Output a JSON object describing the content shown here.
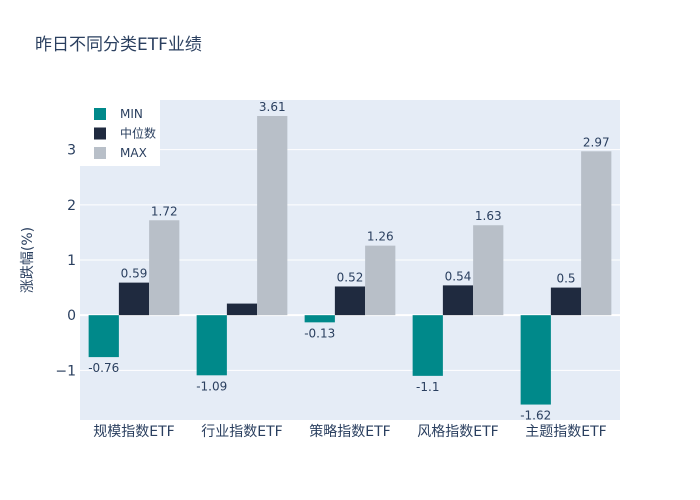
{
  "chart_data": {
    "type": "bar",
    "title": "昨日不同分类ETF业绩",
    "xlabel": "",
    "ylabel": "涨跌幅(%)",
    "categories": [
      "规模指数ETF",
      "行业指数ETF",
      "策略指数ETF",
      "风格指数ETF",
      "主题指数ETF"
    ],
    "series": [
      {
        "name": "MIN",
        "values": [
          -0.76,
          -1.09,
          -0.13,
          -1.1,
          -1.62
        ],
        "labels": [
          "-0.76",
          "-1.09",
          "-0.13",
          "-1.1",
          "-1.62"
        ],
        "color": "#00898a"
      },
      {
        "name": "中位数",
        "values": [
          0.59,
          0.21,
          0.52,
          0.54,
          0.5
        ],
        "labels": [
          "0.59",
          "",
          "0.52",
          "0.54",
          "0.5"
        ],
        "color": "#1f2a3f"
      },
      {
        "name": "MAX",
        "values": [
          1.72,
          3.61,
          1.26,
          1.63,
          2.97
        ],
        "labels": [
          "1.72",
          "3.61",
          "1.26",
          "1.63",
          "2.97"
        ],
        "color": "#b8bfc8"
      }
    ],
    "ylim": [
      -1.9,
      3.9
    ],
    "yticks": [
      -1,
      0,
      1,
      2,
      3
    ],
    "ytick_labels": [
      "−1",
      "0",
      "1",
      "2",
      "3"
    ],
    "grid": true,
    "legend_position": "top-left",
    "background": "#e5ecf6"
  }
}
